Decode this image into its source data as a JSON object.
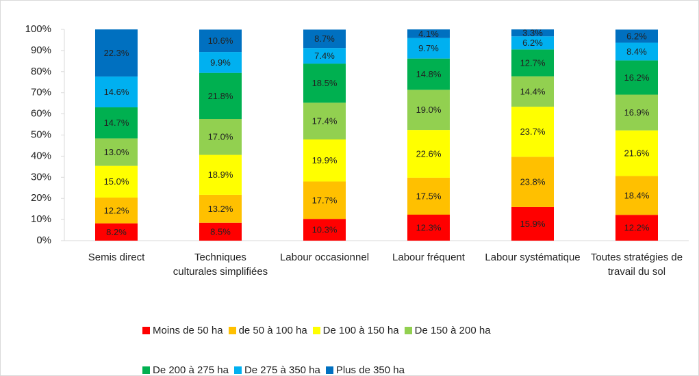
{
  "chart_data": {
    "type": "stacked_bar",
    "categories": [
      "Semis direct",
      "Techniques culturales simplifiées",
      "Labour occasionnel",
      "Labour fréquent",
      "Labour systématique",
      "Toutes stratégies de travail du sol"
    ],
    "series": [
      {
        "name": "Moins de 50 ha",
        "color": "#ff0000",
        "values": [
          8.2,
          8.5,
          10.3,
          12.3,
          15.9,
          12.2
        ],
        "value_labels": [
          "8.2%",
          "8.5%",
          "10.3%",
          "12.3%",
          "15.9%",
          "12.2%"
        ]
      },
      {
        "name": "de 50 à 100 ha",
        "color": "#ffc000",
        "values": [
          12.2,
          13.2,
          17.7,
          17.5,
          23.8,
          18.4
        ],
        "value_labels": [
          "12.2%",
          "13.2%",
          "17.7%",
          "17.5%",
          "23.8%",
          "18.4%"
        ]
      },
      {
        "name": "De 100 à 150 ha",
        "color": "#ffff00",
        "values": [
          15.0,
          18.9,
          19.9,
          22.6,
          23.7,
          21.6
        ],
        "value_labels": [
          "15.0%",
          "18.9%",
          "19.9%",
          "22.6%",
          "23.7%",
          "21.6%"
        ]
      },
      {
        "name": "De 150 à 200 ha",
        "color": "#92d050",
        "values": [
          13.0,
          17.0,
          17.4,
          19.0,
          14.4,
          16.9
        ],
        "value_labels": [
          "13.0%",
          "17.0%",
          "17.4%",
          "19.0%",
          "14.4%",
          "16.9%"
        ]
      },
      {
        "name": "De 200 à 275 ha",
        "color": "#00b050",
        "values": [
          14.7,
          21.8,
          18.5,
          14.8,
          12.7,
          16.2
        ],
        "value_labels": [
          "14.7%",
          "21.8%",
          "18.5%",
          "14.8%",
          "12.7%",
          "16.2%"
        ]
      },
      {
        "name": "De 275 à 350 ha",
        "color": "#00b0f0",
        "values": [
          14.6,
          9.9,
          7.4,
          9.7,
          6.2,
          8.4
        ],
        "value_labels": [
          "14.6%",
          "9.9%",
          "7.4%",
          "9.7%",
          "6.2%",
          "8.4%"
        ]
      },
      {
        "name": "Plus de 350 ha",
        "color": "#0070c0",
        "values": [
          22.3,
          10.6,
          8.7,
          4.1,
          3.3,
          6.2
        ],
        "value_labels": [
          "22.3%",
          "10.6%",
          "8.7%",
          "4.1%",
          "3.3%",
          "6.2%"
        ]
      }
    ],
    "ylim": [
      0,
      100
    ],
    "yticks": [
      {
        "value": 0,
        "label": "0%"
      },
      {
        "value": 10,
        "label": "10%"
      },
      {
        "value": 20,
        "label": "20%"
      },
      {
        "value": 30,
        "label": "30%"
      },
      {
        "value": 40,
        "label": "40%"
      },
      {
        "value": 50,
        "label": "50%"
      },
      {
        "value": 60,
        "label": "60%"
      },
      {
        "value": 70,
        "label": "70%"
      },
      {
        "value": 80,
        "label": "80%"
      },
      {
        "value": 90,
        "label": "90%"
      },
      {
        "value": 100,
        "label": "100%"
      }
    ],
    "legend": "bottom"
  }
}
